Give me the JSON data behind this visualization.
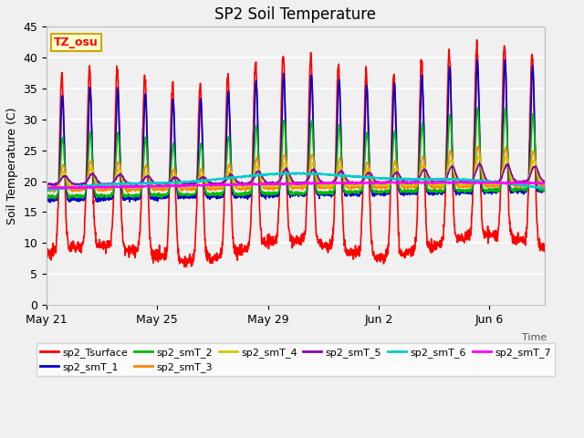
{
  "title": "SP2 Soil Temperature",
  "ylabel": "Soil Temperature (C)",
  "xlabel": "Time",
  "ylim": [
    0,
    45
  ],
  "annotation_text": "TZ_osu",
  "annotation_bg": "#FFFFCC",
  "annotation_border": "#CCAA00",
  "plot_bg": "#F0F0F0",
  "fig_bg": "#F0F0F0",
  "series": {
    "sp2_Tsurface": {
      "color": "#FF0000",
      "lw": 1.2
    },
    "sp2_smT_1": {
      "color": "#0000CC",
      "lw": 1.2
    },
    "sp2_smT_2": {
      "color": "#00BB00",
      "lw": 1.2
    },
    "sp2_smT_3": {
      "color": "#FF8800",
      "lw": 1.2
    },
    "sp2_smT_4": {
      "color": "#CCCC00",
      "lw": 1.2
    },
    "sp2_smT_5": {
      "color": "#8800AA",
      "lw": 1.2
    },
    "sp2_smT_6": {
      "color": "#00CCCC",
      "lw": 1.5
    },
    "sp2_smT_7": {
      "color": "#FF00FF",
      "lw": 1.5
    }
  },
  "xtick_labels": [
    "May 21",
    "May 25",
    "May 29",
    "Jun 2",
    "Jun 6"
  ],
  "xtick_positions": [
    0,
    4,
    8,
    12,
    16
  ],
  "ytick_labels": [
    "0",
    "5",
    "10",
    "15",
    "20",
    "25",
    "30",
    "35",
    "40",
    "45"
  ],
  "ytick_positions": [
    0,
    5,
    10,
    15,
    20,
    25,
    30,
    35,
    40,
    45
  ],
  "n_days": 18,
  "pts_per_day": 96,
  "legend_order": [
    "sp2_Tsurface",
    "sp2_smT_1",
    "sp2_smT_2",
    "sp2_smT_3",
    "sp2_smT_4",
    "sp2_smT_5",
    "sp2_smT_6",
    "sp2_smT_7"
  ]
}
